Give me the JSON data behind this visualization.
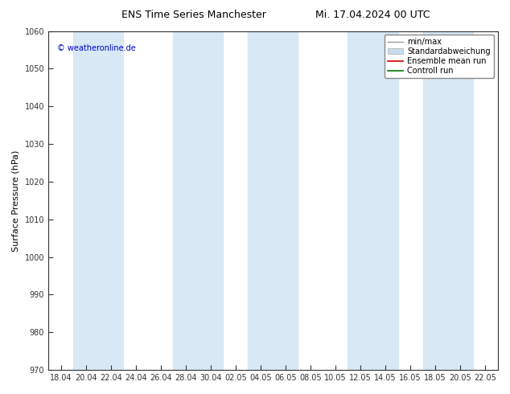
{
  "title_left": "ENS Time Series Manchester",
  "title_right": "Mi. 17.04.2024 00 UTC",
  "ylabel": "Surface Pressure (hPa)",
  "ylim": [
    970,
    1060
  ],
  "yticks": [
    970,
    980,
    990,
    1000,
    1010,
    1020,
    1030,
    1040,
    1050,
    1060
  ],
  "xtick_labels": [
    "18.04",
    "20.04",
    "22.04",
    "24.04",
    "26.04",
    "28.04",
    "30.04",
    "02.05",
    "04.05",
    "06.05",
    "08.05",
    "10.05",
    "12.05",
    "14.05",
    "16.05",
    "18.05",
    "20.05",
    "22.05"
  ],
  "copyright_text": "© weatheronline.de",
  "legend_items": [
    "min/max",
    "Standardabweichung",
    "Ensemble mean run",
    "Controll run"
  ],
  "bg_color": "#ffffff",
  "plot_bg_color": "#ffffff",
  "band_color": "#d8e8f5",
  "ensemble_mean_color": "#cc0000",
  "control_run_color": "#007700",
  "minmax_color": "#999999",
  "std_color": "#c8ddf0",
  "title_fontsize": 9,
  "tick_fontsize": 7,
  "label_fontsize": 8,
  "legend_fontsize": 7,
  "copyright_color": "#0000cc"
}
